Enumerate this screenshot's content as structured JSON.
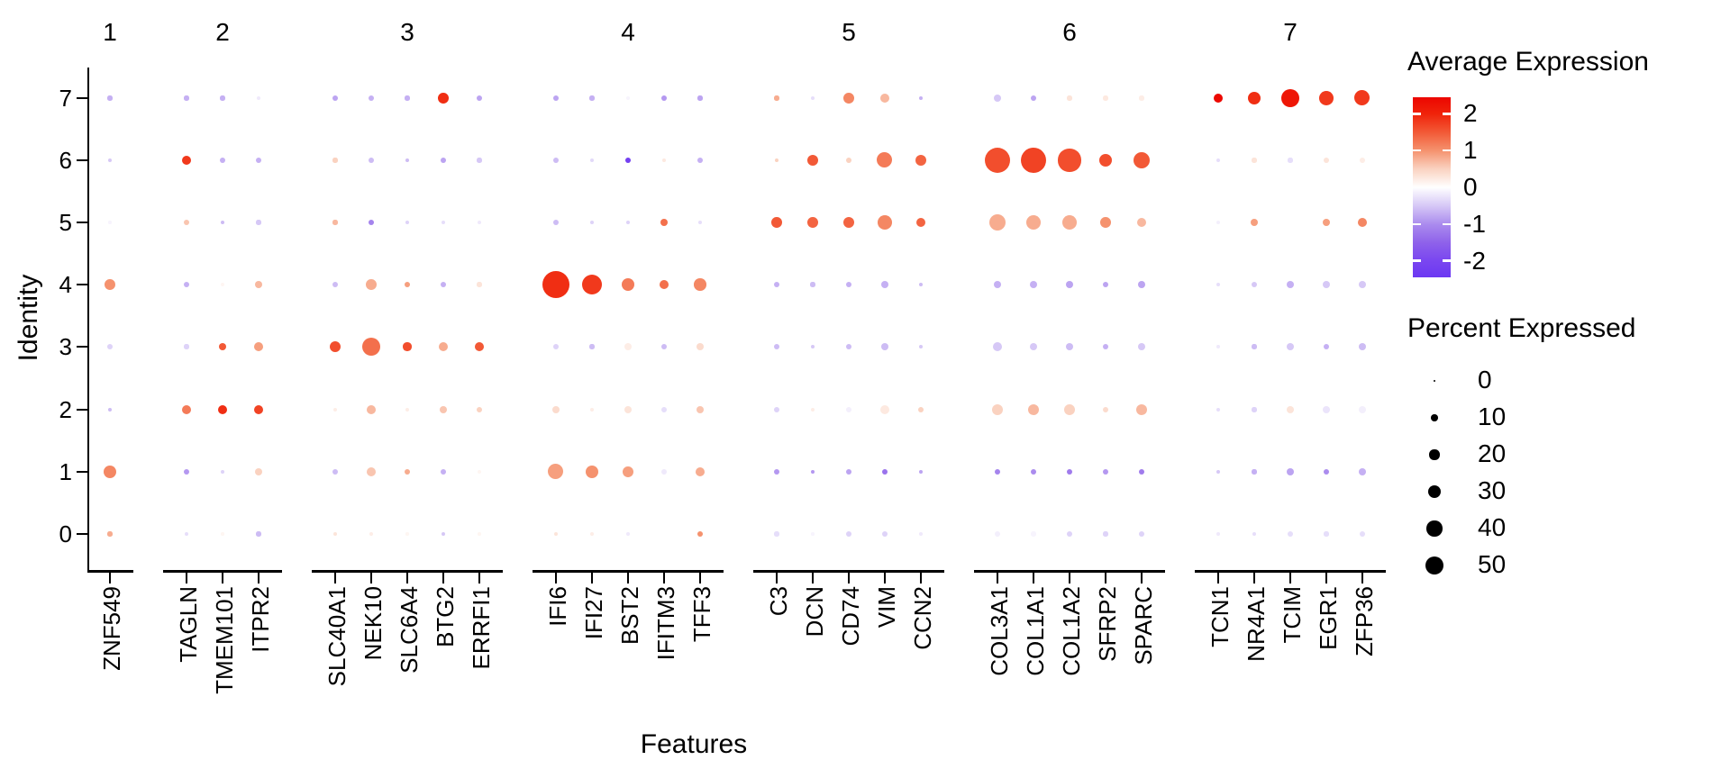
{
  "figure": {
    "background": "#ffffff"
  },
  "axes": {
    "x_title": "Features",
    "y_title": "Identity",
    "y_ticks": [
      "7",
      "6",
      "5",
      "4",
      "3",
      "2",
      "1",
      "0"
    ],
    "group_labels": [
      "1",
      "2",
      "3",
      "4",
      "5",
      "6",
      "7"
    ]
  },
  "groups": [
    {
      "label": "1",
      "genes": [
        "ZNF549"
      ]
    },
    {
      "label": "2",
      "genes": [
        "TAGLN",
        "TMEM101",
        "ITPR2"
      ]
    },
    {
      "label": "3",
      "genes": [
        "SLC40A1",
        "NEK10",
        "SLC6A4",
        "BTG2",
        "ERRFI1"
      ]
    },
    {
      "label": "4",
      "genes": [
        "IFI6",
        "IFI27",
        "BST2",
        "IFITM3",
        "TFF3"
      ]
    },
    {
      "label": "5",
      "genes": [
        "C3",
        "DCN",
        "CD74",
        "VIM",
        "CCN2"
      ]
    },
    {
      "label": "6",
      "genes": [
        "COL3A1",
        "COL1A1",
        "COL1A2",
        "SFRP2",
        "SPARC"
      ]
    },
    {
      "label": "7",
      "genes": [
        "TCN1",
        "NR4A1",
        "TCIM",
        "EGR1",
        "ZFP36"
      ]
    }
  ],
  "legend": {
    "average_expression": {
      "title": "Average Expression",
      "tick_labels": [
        "2",
        "1",
        "0",
        "-1",
        "-2"
      ],
      "tick_values": [
        2,
        1,
        0,
        -1,
        -2
      ],
      "range": [
        -2.45,
        2.45
      ],
      "gradient_stops": [
        {
          "value": -2.45,
          "color": "#6c38f2"
        },
        {
          "value": -2.0,
          "color": "#7a46f0"
        },
        {
          "value": -1.5,
          "color": "#8f62ea"
        },
        {
          "value": -1.0,
          "color": "#ab8cee"
        },
        {
          "value": -0.5,
          "color": "#d6c8f6"
        },
        {
          "value": 0.0,
          "color": "#ffffff"
        },
        {
          "value": 0.5,
          "color": "#fad2c0"
        },
        {
          "value": 1.0,
          "color": "#f5926e"
        },
        {
          "value": 1.5,
          "color": "#f25936"
        },
        {
          "value": 2.0,
          "color": "#f0230a"
        },
        {
          "value": 2.45,
          "color": "#ec0600"
        }
      ]
    },
    "percent_expressed": {
      "title": "Percent Expressed",
      "sizes": [
        0,
        10,
        20,
        30,
        40,
        50
      ],
      "dot_color": "#000000"
    }
  },
  "chart_data": {
    "type": "scatter",
    "subtype": "dot_plot",
    "title": "",
    "xlabel": "Features",
    "ylabel": "Identity",
    "grid": false,
    "identities": [
      7,
      6,
      5,
      4,
      3,
      2,
      1,
      0
    ],
    "series": [
      {
        "gene": "ZNF549",
        "group": "1",
        "percent_expressed": [
          4,
          2,
          1,
          22,
          6,
          2,
          29,
          4
        ],
        "avg_expression": [
          -0.7,
          -0.5,
          -0.1,
          1.0,
          -0.4,
          -0.6,
          1.1,
          0.8
        ]
      },
      {
        "gene": "TAGLN",
        "group": "2",
        "percent_expressed": [
          4,
          19,
          8,
          6,
          4,
          19,
          6,
          2
        ],
        "avg_expression": [
          -0.7,
          1.8,
          0.6,
          -0.7,
          -0.4,
          1.2,
          -0.9,
          -0.3
        ]
      },
      {
        "gene": "TMEM101",
        "group": "2",
        "percent_expressed": [
          4,
          6,
          2,
          2,
          11,
          19,
          2,
          1
        ],
        "avg_expression": [
          -0.7,
          -0.7,
          -0.6,
          0.1,
          1.5,
          1.9,
          -0.4,
          0.1
        ]
      },
      {
        "gene": "ITPR2",
        "group": "2",
        "percent_expressed": [
          2,
          6,
          4,
          13,
          16,
          19,
          11,
          4
        ],
        "avg_expression": [
          -0.2,
          -0.7,
          -0.5,
          0.7,
          0.9,
          1.7,
          0.5,
          -0.6
        ]
      },
      {
        "gene": "SLC40A1",
        "group": "3",
        "percent_expressed": [
          8,
          4,
          4,
          6,
          25,
          2,
          6,
          2
        ],
        "avg_expression": [
          -0.8,
          0.5,
          0.7,
          -0.6,
          1.6,
          0.2,
          -0.6,
          0.3
        ]
      },
      {
        "gene": "NEK10",
        "group": "3",
        "percent_expressed": [
          6,
          6,
          6,
          22,
          50,
          16,
          16,
          2
        ],
        "avg_expression": [
          -0.7,
          -0.6,
          -1.1,
          0.8,
          1.3,
          0.7,
          0.6,
          0.2
        ]
      },
      {
        "gene": "SLC6A4",
        "group": "3",
        "percent_expressed": [
          4,
          2,
          2,
          8,
          14,
          2,
          8,
          1
        ],
        "avg_expression": [
          -0.7,
          -0.6,
          -0.4,
          0.9,
          1.6,
          0.2,
          0.8,
          0.1
        ]
      },
      {
        "gene": "BTG2",
        "group": "3",
        "percent_expressed": [
          22,
          8,
          2,
          8,
          19,
          11,
          6,
          2
        ],
        "avg_expression": [
          1.9,
          -0.8,
          -0.3,
          -0.7,
          0.8,
          0.6,
          -0.7,
          -0.5
        ]
      },
      {
        "gene": "ERRFI1",
        "group": "3",
        "percent_expressed": [
          6,
          4,
          2,
          4,
          16,
          8,
          2,
          1
        ],
        "avg_expression": [
          -0.8,
          -0.5,
          -0.2,
          0.3,
          1.5,
          0.5,
          0.1,
          0.1
        ]
      },
      {
        "gene": "IFI6",
        "group": "4",
        "percent_expressed": [
          6,
          6,
          6,
          91,
          6,
          11,
          39,
          2
        ],
        "avg_expression": [
          -0.8,
          -0.6,
          -0.6,
          1.9,
          -0.4,
          0.4,
          0.9,
          0.3
        ]
      },
      {
        "gene": "IFI27",
        "group": "4",
        "percent_expressed": [
          4,
          2,
          2,
          58,
          4,
          2,
          29,
          2
        ],
        "avg_expression": [
          -0.7,
          -0.35,
          -0.4,
          1.8,
          -0.6,
          0.2,
          1.0,
          0.2
        ]
      },
      {
        "gene": "BST2",
        "group": "4",
        "percent_expressed": [
          2,
          6,
          2,
          29,
          13,
          13,
          22,
          2
        ],
        "avg_expression": [
          -0.1,
          -2.2,
          -0.4,
          1.2,
          0.2,
          0.3,
          0.9,
          -0.2
        ]
      },
      {
        "gene": "IFITM3",
        "group": "4",
        "percent_expressed": [
          8,
          2,
          11,
          16,
          6,
          6,
          8,
          1
        ],
        "avg_expression": [
          -0.9,
          0.25,
          1.3,
          1.3,
          -0.6,
          -0.3,
          -0.2,
          0.0
        ]
      },
      {
        "gene": "TFF3",
        "group": "4",
        "percent_expressed": [
          4,
          6,
          2,
          27,
          13,
          11,
          16,
          6
        ],
        "avg_expression": [
          -0.8,
          -0.7,
          -0.3,
          1.1,
          0.4,
          0.6,
          0.8,
          1.0
        ]
      },
      {
        "gene": "C3",
        "group": "5",
        "percent_expressed": [
          4,
          3,
          22,
          6,
          6,
          6,
          6,
          4
        ],
        "avg_expression": [
          0.8,
          0.5,
          1.5,
          -0.7,
          -0.6,
          -0.4,
          -0.9,
          -0.3
        ]
      },
      {
        "gene": "DCN",
        "group": "5",
        "percent_expressed": [
          2,
          25,
          22,
          4,
          2,
          2,
          2,
          1
        ],
        "avg_expression": [
          -0.3,
          1.5,
          1.4,
          -0.6,
          -0.5,
          0.2,
          -0.9,
          -0.1
        ]
      },
      {
        "gene": "CD74",
        "group": "5",
        "percent_expressed": [
          22,
          8,
          25,
          6,
          6,
          6,
          6,
          6
        ],
        "avg_expression": [
          1.1,
          0.5,
          1.4,
          -0.7,
          -0.6,
          -0.15,
          -0.8,
          -0.4
        ]
      },
      {
        "gene": "VIM",
        "group": "5",
        "percent_expressed": [
          16,
          39,
          35,
          11,
          11,
          19,
          8,
          6
        ],
        "avg_expression": [
          0.7,
          1.2,
          1.1,
          -0.7,
          -0.6,
          0.25,
          -1.3,
          -0.4
        ]
      },
      {
        "gene": "CCN2",
        "group": "5",
        "percent_expressed": [
          2,
          25,
          19,
          2,
          2,
          6,
          2,
          2
        ],
        "avg_expression": [
          -0.7,
          1.4,
          1.4,
          -0.6,
          -0.5,
          0.5,
          -0.8,
          -0.2
        ]
      },
      {
        "gene": "COL3A1",
        "group": "6",
        "percent_expressed": [
          13,
          86,
          45,
          13,
          16,
          25,
          8,
          8
        ],
        "avg_expression": [
          -0.5,
          1.6,
          0.8,
          -0.7,
          -0.5,
          0.5,
          -1.1,
          -0.15
        ]
      },
      {
        "gene": "COL1A1",
        "group": "6",
        "percent_expressed": [
          6,
          82,
          35,
          11,
          11,
          25,
          8,
          4
        ],
        "avg_expression": [
          -0.8,
          1.7,
          0.8,
          -0.7,
          -0.5,
          0.7,
          -1.0,
          -0.1
        ]
      },
      {
        "gene": "COL1A2",
        "group": "6",
        "percent_expressed": [
          4,
          70,
          35,
          11,
          11,
          22,
          8,
          8
        ],
        "avg_expression": [
          0.3,
          1.6,
          0.8,
          -0.8,
          -0.6,
          0.5,
          -1.2,
          -0.4
        ]
      },
      {
        "gene": "SFRP2",
        "group": "6",
        "percent_expressed": [
          4,
          29,
          22,
          6,
          6,
          8,
          6,
          4
        ],
        "avg_expression": [
          0.25,
          1.6,
          1.0,
          -0.8,
          -0.7,
          0.4,
          -0.9,
          -0.4
        ]
      },
      {
        "gene": "SPARC",
        "group": "6",
        "percent_expressed": [
          4,
          43,
          19,
          11,
          11,
          25,
          8,
          6
        ],
        "avg_expression": [
          0.2,
          1.5,
          0.7,
          -0.8,
          -0.5,
          0.7,
          -1.2,
          -0.4
        ]
      },
      {
        "gene": "TCN1",
        "group": "7",
        "percent_expressed": [
          19,
          2,
          2,
          2,
          2,
          2,
          2,
          2
        ],
        "avg_expression": [
          2.4,
          -0.3,
          -0.15,
          -0.3,
          -0.2,
          -0.3,
          -0.5,
          -0.2
        ]
      },
      {
        "gene": "NR4A1",
        "group": "7",
        "percent_expressed": [
          32,
          4,
          11,
          6,
          4,
          4,
          4,
          2
        ],
        "avg_expression": [
          1.9,
          0.3,
          0.9,
          -0.5,
          -0.6,
          -0.4,
          -0.7,
          -0.3
        ]
      },
      {
        "gene": "TCIM",
        "group": "7",
        "percent_expressed": [
          50,
          4,
          0,
          13,
          13,
          11,
          11,
          6
        ],
        "avg_expression": [
          2.2,
          -0.3,
          0.0,
          -0.7,
          -0.5,
          0.3,
          -0.8,
          -0.3
        ]
      },
      {
        "gene": "EGR1",
        "group": "7",
        "percent_expressed": [
          35,
          6,
          11,
          11,
          8,
          11,
          6,
          4
        ],
        "avg_expression": [
          1.8,
          0.3,
          0.9,
          -0.5,
          -0.7,
          -0.25,
          -1.0,
          -0.3
        ]
      },
      {
        "gene": "ZFP36",
        "group": "7",
        "percent_expressed": [
          39,
          6,
          16,
          13,
          13,
          11,
          11,
          8
        ],
        "avg_expression": [
          1.8,
          0.2,
          1.1,
          -0.5,
          -0.6,
          -0.15,
          -0.7,
          -0.3
        ]
      }
    ]
  }
}
